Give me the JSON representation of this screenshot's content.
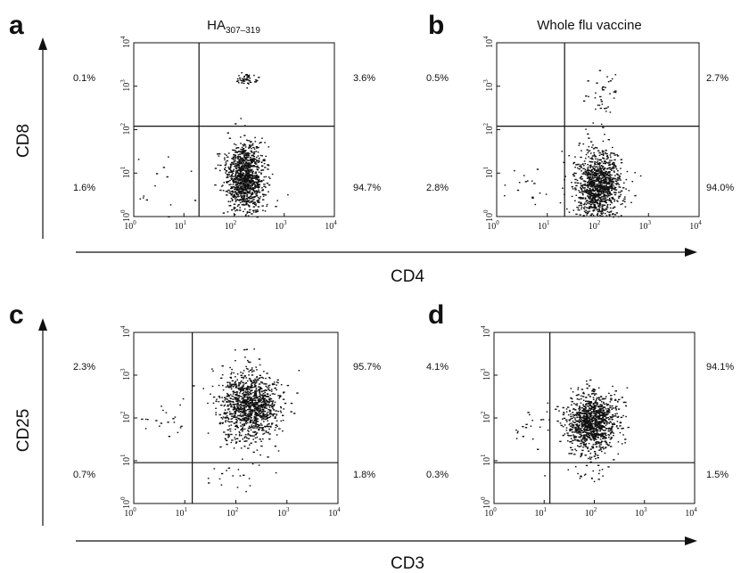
{
  "figure": {
    "x_axis_label_top": "CD4",
    "y_axis_label_top": "CD8",
    "x_axis_label_bottom": "CD3",
    "y_axis_label_bottom": "CD25"
  },
  "colors": {
    "ink": "#111111",
    "background": "#ffffff"
  },
  "chart_data": [
    {
      "type": "scatter",
      "panel": "a",
      "title": "HA",
      "title_subscript": "307–319",
      "xlabel": "CD4",
      "ylabel": "CD8",
      "xscale": "log",
      "yscale": "log",
      "xlim": [
        1,
        10000
      ],
      "ylim": [
        1,
        10000
      ],
      "xticks": [
        "10",
        "10",
        "10",
        "10",
        "10"
      ],
      "xtick_exponents": [
        "0",
        "1",
        "2",
        "3",
        "4"
      ],
      "yticks": [
        "10",
        "10",
        "10",
        "10",
        "10"
      ],
      "ytick_exponents": [
        "0",
        "1",
        "2",
        "3",
        "4"
      ],
      "gate": {
        "x": 20,
        "y": 120
      },
      "quadrants": {
        "upper_left": "0.1%",
        "upper_right": "3.6%",
        "lower_left": "1.6%",
        "lower_right": "94.7%"
      },
      "clusters": [
        {
          "cx": 160,
          "cy": 8,
          "sx": 0.18,
          "sy": 0.38,
          "count": 1100
        },
        {
          "cx": 170,
          "cy": 1500,
          "sx": 0.12,
          "sy": 0.08,
          "count": 45
        },
        {
          "cx": 5,
          "cy": 6,
          "sx": 0.45,
          "sy": 0.3,
          "count": 14
        }
      ]
    },
    {
      "type": "scatter",
      "panel": "b",
      "title": "Whole flu vaccine",
      "title_subscript": "",
      "xlabel": "CD4",
      "ylabel": "CD8",
      "xscale": "log",
      "yscale": "log",
      "xlim": [
        1,
        10000
      ],
      "ylim": [
        1,
        10000
      ],
      "xticks": [
        "10",
        "10",
        "10",
        "10",
        "10"
      ],
      "xtick_exponents": [
        "0",
        "1",
        "2",
        "3",
        "4"
      ],
      "yticks": [
        "10",
        "10",
        "10",
        "10",
        "10"
      ],
      "ytick_exponents": [
        "0",
        "1",
        "2",
        "3",
        "4"
      ],
      "gate": {
        "x": 22,
        "y": 120
      },
      "quadrants": {
        "upper_left": "0.5%",
        "upper_right": "2.7%",
        "lower_left": "2.8%",
        "lower_right": "94.0%"
      },
      "clusters": [
        {
          "cx": 100,
          "cy": 5,
          "sx": 0.22,
          "sy": 0.4,
          "count": 1100
        },
        {
          "cx": 120,
          "cy": 600,
          "sx": 0.18,
          "sy": 0.3,
          "count": 40
        },
        {
          "cx": 4,
          "cy": 5,
          "sx": 0.45,
          "sy": 0.35,
          "count": 20
        }
      ]
    },
    {
      "type": "scatter",
      "panel": "c",
      "title": "",
      "title_subscript": "",
      "xlabel": "CD3",
      "ylabel": "CD25",
      "xscale": "log",
      "yscale": "log",
      "xlim": [
        1,
        10000
      ],
      "ylim": [
        1,
        10000
      ],
      "xticks": [
        "10",
        "10",
        "10",
        "10",
        "10"
      ],
      "xtick_exponents": [
        "0",
        "1",
        "2",
        "3",
        "4"
      ],
      "yticks": [
        "10",
        "10",
        "10",
        "10",
        "10"
      ],
      "ytick_exponents": [
        "0",
        "1",
        "2",
        "3",
        "4"
      ],
      "gate": {
        "x": 14,
        "y": 9
      },
      "quadrants": {
        "upper_left": "2.3%",
        "upper_right": "95.7%",
        "lower_left": "0.7%",
        "lower_right": "1.8%"
      },
      "clusters": [
        {
          "cx": 180,
          "cy": 200,
          "sx": 0.28,
          "sy": 0.4,
          "count": 1100
        },
        {
          "cx": 4,
          "cy": 100,
          "sx": 0.35,
          "sy": 0.35,
          "count": 22
        },
        {
          "cx": 100,
          "cy": 4,
          "sx": 0.3,
          "sy": 0.25,
          "count": 20
        }
      ]
    },
    {
      "type": "scatter",
      "panel": "d",
      "title": "",
      "title_subscript": "",
      "xlabel": "CD3",
      "ylabel": "CD25",
      "xscale": "log",
      "yscale": "log",
      "xlim": [
        1,
        10000
      ],
      "ylim": [
        1,
        10000
      ],
      "xticks": [
        "10",
        "10",
        "10",
        "10",
        "10"
      ],
      "xtick_exponents": [
        "0",
        "1",
        "2",
        "3",
        "4"
      ],
      "yticks": [
        "10",
        "10",
        "10",
        "10",
        "10"
      ],
      "ytick_exponents": [
        "0",
        "1",
        "2",
        "3",
        "4"
      ],
      "gate": {
        "x": 13,
        "y": 9
      },
      "quadrants": {
        "upper_left": "4.1%",
        "upper_right": "94.1%",
        "lower_left": "0.3%",
        "lower_right": "1.5%"
      },
      "clusters": [
        {
          "cx": 90,
          "cy": 80,
          "sx": 0.25,
          "sy": 0.35,
          "count": 1100
        },
        {
          "cx": 6,
          "cy": 60,
          "sx": 0.35,
          "sy": 0.3,
          "count": 25
        },
        {
          "cx": 60,
          "cy": 5,
          "sx": 0.25,
          "sy": 0.2,
          "count": 15
        }
      ]
    }
  ]
}
